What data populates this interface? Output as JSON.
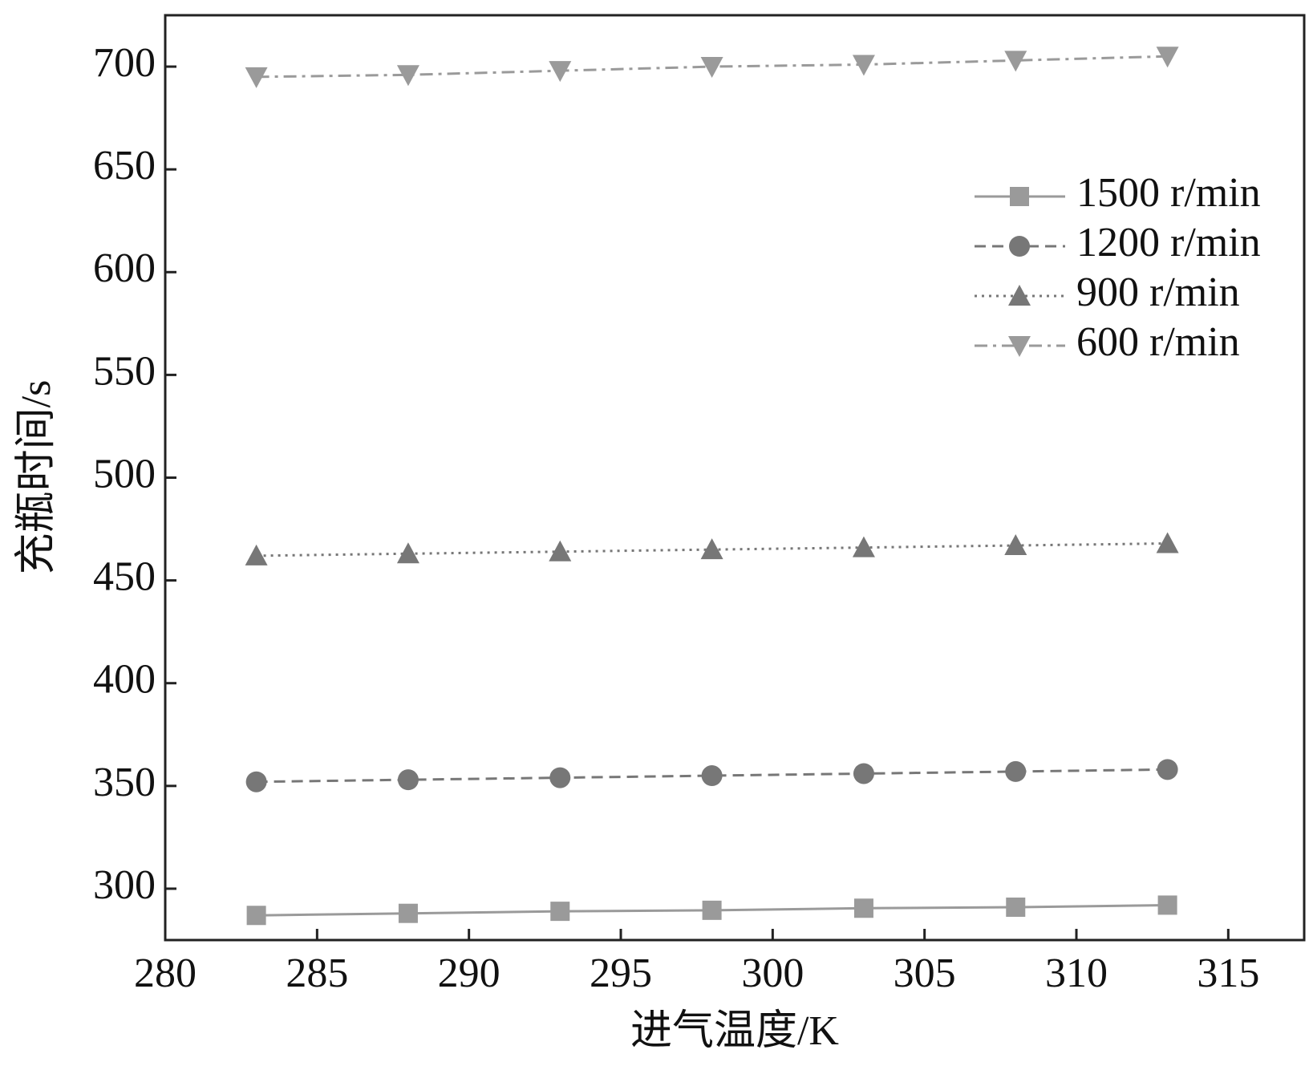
{
  "chart_data": {
    "type": "line",
    "x_label": "进气温度/K",
    "y_label": "充瓶时间/s",
    "x": [
      283,
      288,
      293,
      298,
      303,
      308,
      313
    ],
    "series": [
      {
        "name": "1500 r/min",
        "color": "#9a9a9a",
        "marker": "square",
        "linestyle": "solid",
        "values": [
          287,
          288,
          289,
          289.5,
          290.5,
          291,
          292
        ]
      },
      {
        "name": "1200 r/min",
        "color": "#777777",
        "marker": "circle",
        "linestyle": "dashed",
        "values": [
          352,
          353,
          354,
          355,
          356,
          357,
          358
        ]
      },
      {
        "name": "900 r/min",
        "color": "#777777",
        "marker": "triangle",
        "linestyle": "dotted",
        "values": [
          462,
          463,
          464,
          465,
          466,
          467,
          468
        ]
      },
      {
        "name": "600 r/min",
        "color": "#9a9a9a",
        "marker": "triangle-down",
        "linestyle": "dashdot",
        "values": [
          695,
          696,
          698,
          700,
          701,
          703,
          705
        ]
      }
    ],
    "xlim": [
      280,
      317.5
    ],
    "xticks": [
      280,
      285,
      290,
      295,
      300,
      305,
      310,
      315
    ],
    "ylim": [
      275,
      725
    ],
    "yticks": [
      300,
      350,
      400,
      450,
      500,
      550,
      600,
      650,
      700
    ],
    "legend": "upper right",
    "grid": false
  }
}
